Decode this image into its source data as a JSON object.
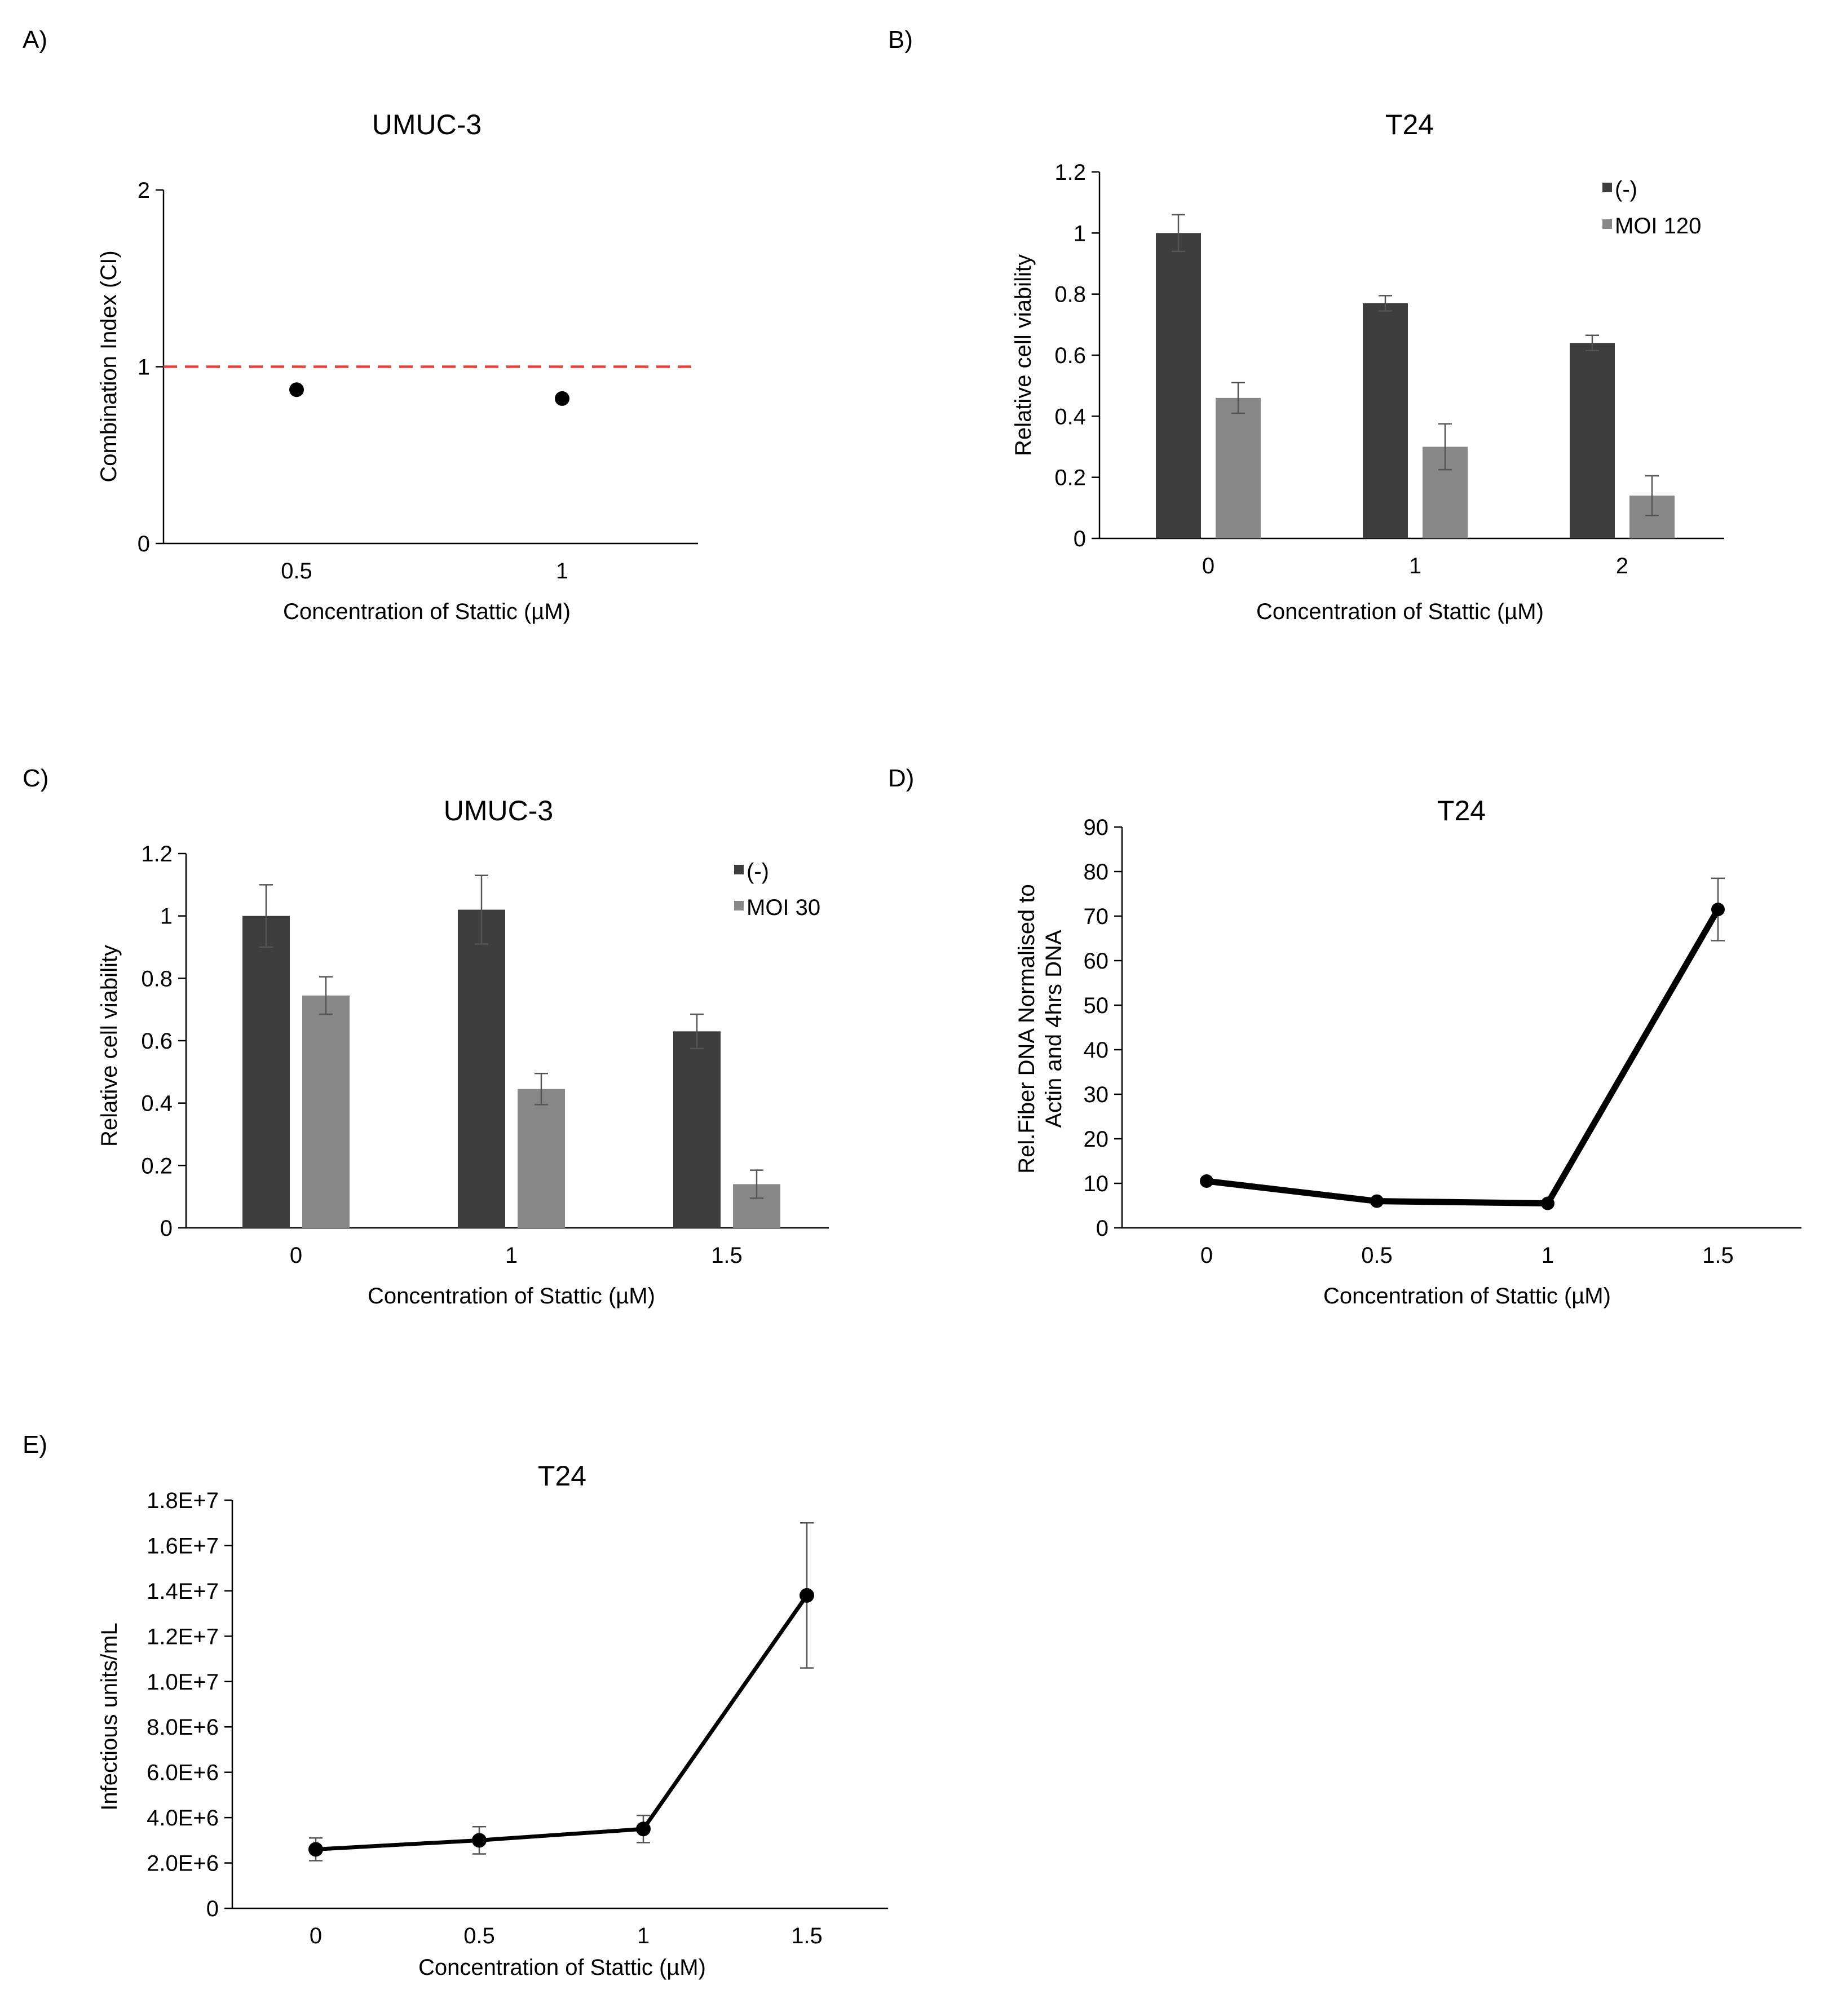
{
  "figure": {
    "panels": [
      "A)",
      "B)",
      "C)",
      "D)",
      "E)"
    ]
  },
  "chart_data": [
    {
      "id": "A",
      "panel_label": "A)",
      "type": "scatter",
      "title": "UMUC-3",
      "xlabel": "Concentration of Stattic (µM)",
      "ylabel": "Combination Index (CI)",
      "categories": [
        "0.5",
        "1"
      ],
      "values": [
        0.87,
        0.82
      ],
      "ylim": [
        0,
        2
      ],
      "yticks": [
        "0",
        "1",
        "2"
      ],
      "reference_line": {
        "y": 1,
        "color": "#e8413c",
        "style": "dashed"
      },
      "marker_color": "#000000"
    },
    {
      "id": "B",
      "panel_label": "B)",
      "type": "bar",
      "title": "T24",
      "xlabel": "Concentration of Stattic (µM)",
      "ylabel": "Relative cell viability",
      "categories": [
        "0",
        "1",
        "2"
      ],
      "ylim": [
        0,
        1.2
      ],
      "yticks": [
        "0",
        "0.2",
        "0.4",
        "0.6",
        "0.8",
        "1",
        "1.2"
      ],
      "legend_position": "top-right",
      "series": [
        {
          "name": "(-)",
          "color": "#3d3d3d",
          "values": [
            1.0,
            0.77,
            0.64
          ],
          "errors": [
            0.06,
            0.025,
            0.025
          ]
        },
        {
          "name": "MOI 120",
          "color": "#878787",
          "values": [
            0.46,
            0.3,
            0.14
          ],
          "errors": [
            0.05,
            0.075,
            0.065
          ]
        }
      ]
    },
    {
      "id": "C",
      "panel_label": "C)",
      "type": "bar",
      "title": "UMUC-3",
      "xlabel": "Concentration of Stattic (µM)",
      "ylabel": "Relative cell viability",
      "categories": [
        "0",
        "1",
        "1.5"
      ],
      "ylim": [
        0,
        1.2
      ],
      "yticks": [
        "0",
        "0.2",
        "0.4",
        "0.6",
        "0.8",
        "1",
        "1.2"
      ],
      "legend_position": "top-right",
      "series": [
        {
          "name": "(-)",
          "color": "#3d3d3d",
          "values": [
            1.0,
            1.02,
            0.63
          ],
          "errors": [
            0.1,
            0.11,
            0.055
          ]
        },
        {
          "name": "MOI 30",
          "color": "#878787",
          "values": [
            0.745,
            0.445,
            0.14
          ],
          "errors": [
            0.06,
            0.05,
            0.045
          ]
        }
      ]
    },
    {
      "id": "D",
      "panel_label": "D)",
      "type": "line",
      "title": "T24",
      "xlabel": "Concentration of Stattic (µM)",
      "ylabel_lines": [
        "Rel.Fiber DNA Normalised to",
        "Actin and 4hrs DNA"
      ],
      "categories": [
        "0",
        "0.5",
        "1",
        "1.5"
      ],
      "values": [
        10.5,
        6,
        5.5,
        71.5
      ],
      "errors": [
        0,
        0,
        0,
        7
      ],
      "ylim": [
        0,
        90
      ],
      "yticks": [
        "0",
        "10",
        "20",
        "30",
        "40",
        "50",
        "60",
        "70",
        "80",
        "90"
      ],
      "line_color": "#000000"
    },
    {
      "id": "E",
      "panel_label": "E)",
      "type": "line",
      "title": "T24",
      "xlabel": "Concentration of Stattic (µM)",
      "ylabel": "Infectious units/mL",
      "categories": [
        "0",
        "0.5",
        "1",
        "1.5"
      ],
      "values": [
        2600000,
        3000000,
        3500000,
        13800000
      ],
      "errors": [
        500000,
        600000,
        600000,
        3200000
      ],
      "ylim": [
        0,
        18000000
      ],
      "yticks": [
        "0",
        "2.0E+6",
        "4.0E+6",
        "6.0E+6",
        "8.0E+6",
        "1.0E+7",
        "1.2E+7",
        "1.4E+7",
        "1.6E+7",
        "1.8E+7"
      ],
      "line_color": "#000000"
    }
  ]
}
